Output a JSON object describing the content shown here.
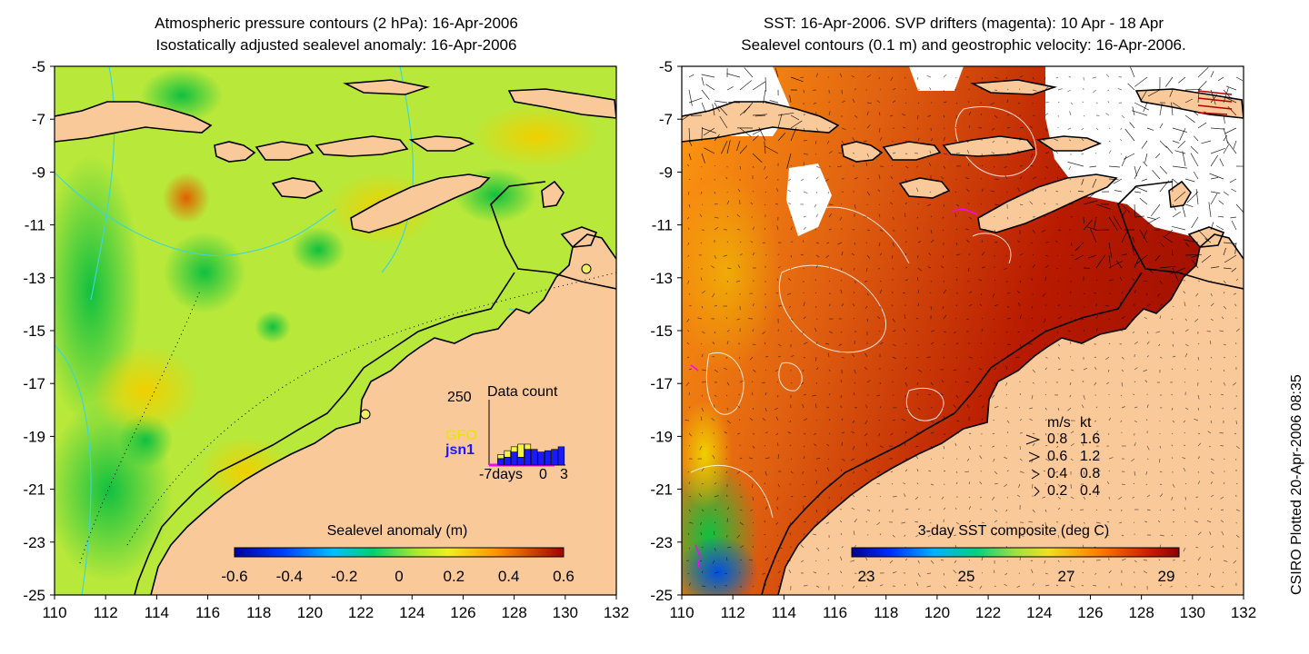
{
  "left_panel": {
    "title_line1": "Atmospheric pressure contours (2 hPa): 16-Apr-2006",
    "title_line2": "Isostatically adjusted sealevel anomaly: 16-Apr-2006",
    "colorbar_label": "Sealevel anomaly (m)",
    "colorbar_ticks": [
      "-0.6",
      "-0.4",
      "-0.2",
      "0",
      "0.2",
      "0.4",
      "0.6"
    ],
    "inset": {
      "title": "Data count",
      "ymax_label": "250",
      "series_labels": [
        "GFO",
        "jsn1"
      ],
      "series_colors": [
        "#f2f24a",
        "#1a1aff"
      ],
      "xtick_labels": [
        "-7days",
        "0",
        "3"
      ],
      "bars": [
        {
          "gfo": 0,
          "jsn1": 0
        },
        {
          "gfo": 15,
          "jsn1": 25
        },
        {
          "gfo": 25,
          "jsn1": 30
        },
        {
          "gfo": 20,
          "jsn1": 50
        },
        {
          "gfo": 50,
          "jsn1": 30
        },
        {
          "gfo": 20,
          "jsn1": 60
        },
        {
          "gfo": 0,
          "jsn1": 60
        },
        {
          "gfo": 0,
          "jsn1": 50
        },
        {
          "gfo": 0,
          "jsn1": 55
        },
        {
          "gfo": 0,
          "jsn1": 60
        },
        {
          "gfo": 0,
          "jsn1": 70
        }
      ]
    }
  },
  "right_panel": {
    "title_line1": "SST: 16-Apr-2006. SVP drifters (magenta): 10 Apr - 18 Apr",
    "title_line2": "Sealevel contours (0.1 m) and geostrophic velocity: 16-Apr-2006.",
    "colorbar_label": "3-day SST composite (deg C)",
    "colorbar_ticks": [
      "23",
      "25",
      "27",
      "29"
    ],
    "velocity_legend": {
      "header": [
        "m/s",
        "kt"
      ],
      "rows": [
        [
          "0.8",
          "1.6"
        ],
        [
          "0.6",
          "1.2"
        ],
        [
          "0.4",
          "0.8"
        ],
        [
          "0.2",
          "0.4"
        ]
      ]
    }
  },
  "axes": {
    "lon_ticks": [
      "110",
      "112",
      "114",
      "116",
      "118",
      "120",
      "122",
      "124",
      "126",
      "128",
      "130",
      "132"
    ],
    "lat_ticks": [
      "-5",
      "-7",
      "-9",
      "-11",
      "-13",
      "-15",
      "-17",
      "-19",
      "-21",
      "-23",
      "-25"
    ]
  },
  "credit": "CSIRO Plotted 20-Apr-2006 08:35",
  "colors": {
    "land": "#f9c99a",
    "coast": "#000000",
    "pressure_contour": "#3fd6d6",
    "sst_contour": "#ffffff",
    "drifter": "#ff00ff"
  }
}
